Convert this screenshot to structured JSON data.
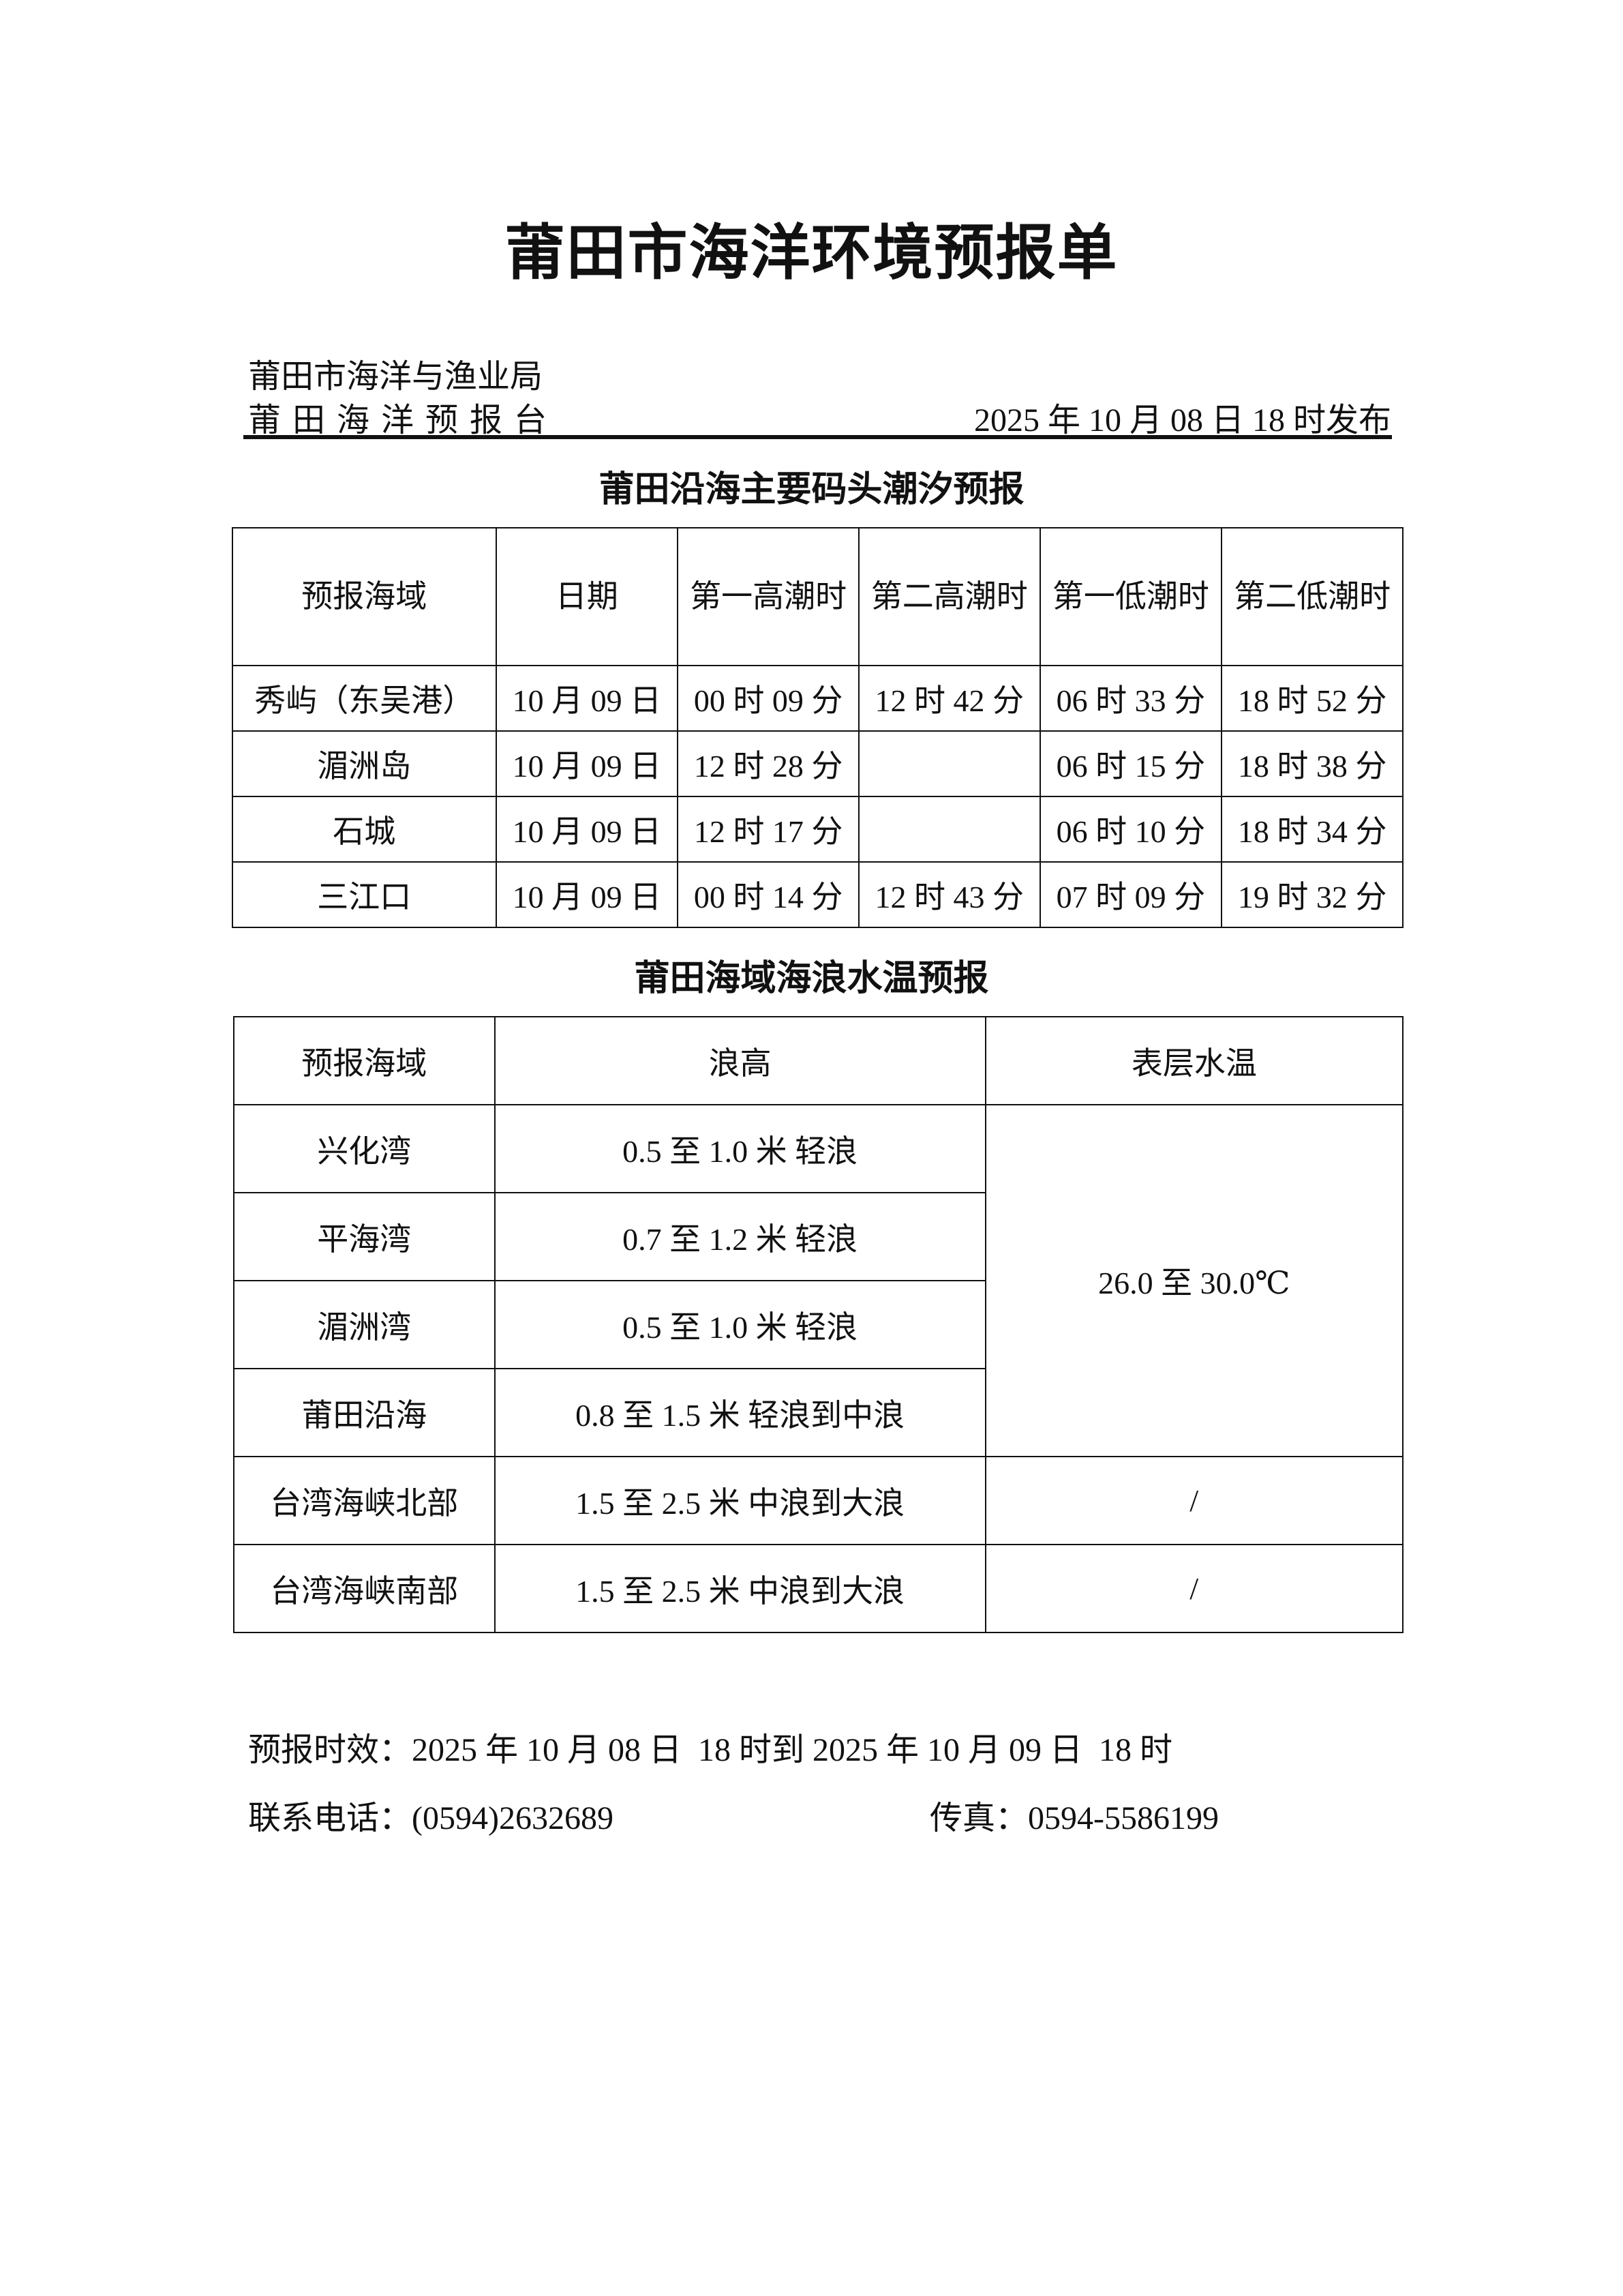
{
  "title": "莆田市海洋环境预报单",
  "header": {
    "org1": "莆田市海洋与渔业局",
    "org2": "莆田海洋预报台",
    "issued": "2025 年 10 月 08 日  18 时发布"
  },
  "tide": {
    "title": "莆田沿海主要码头潮汐预报",
    "columns": [
      "预报海域",
      "日期",
      "第一高潮时",
      "第二高潮时",
      "第一低潮时",
      "第二低潮时"
    ],
    "rows": [
      [
        "秀屿（东吴港）",
        "10 月 09 日",
        "00 时 09 分",
        "12 时 42 分",
        "06 时 33 分",
        "18 时 52 分"
      ],
      [
        "湄洲岛",
        "10 月 09 日",
        "12 时 28 分",
        "",
        "06 时 15 分",
        "18 时 38 分"
      ],
      [
        "石城",
        "10 月 09 日",
        "12 时 17 分",
        "",
        "06 时 10 分",
        "18 时 34 分"
      ],
      [
        "三江口",
        "10 月 09 日",
        "00 时 14 分",
        "12 时 43 分",
        "07 时 09 分",
        "19 时 32 分"
      ]
    ]
  },
  "wave": {
    "title": "莆田海域海浪水温预报",
    "columns": [
      "预报海域",
      "浪高",
      "表层水温"
    ],
    "rows": [
      [
        "兴化湾",
        "0.5 至 1.0 米  轻浪"
      ],
      [
        "平海湾",
        "0.7 至 1.2 米  轻浪"
      ],
      [
        "湄洲湾",
        "0.5 至 1.0 米  轻浪"
      ],
      [
        "莆田沿海",
        "0.8 至 1.5 米  轻浪到中浪"
      ],
      [
        "台湾海峡北部",
        "1.5 至 2.5 米  中浪到大浪",
        "/"
      ],
      [
        "台湾海峡南部",
        "1.5 至 2.5 米  中浪到大浪",
        "/"
      ]
    ],
    "temp_merged": "26.0 至 30.0℃"
  },
  "footer": {
    "validity": "预报时效：2025 年 10 月 08 日  18 时到 2025 年 10 月 09 日  18 时",
    "phone": "联系电话：(0594)2632689",
    "fax": "传真：0594-5586199"
  }
}
